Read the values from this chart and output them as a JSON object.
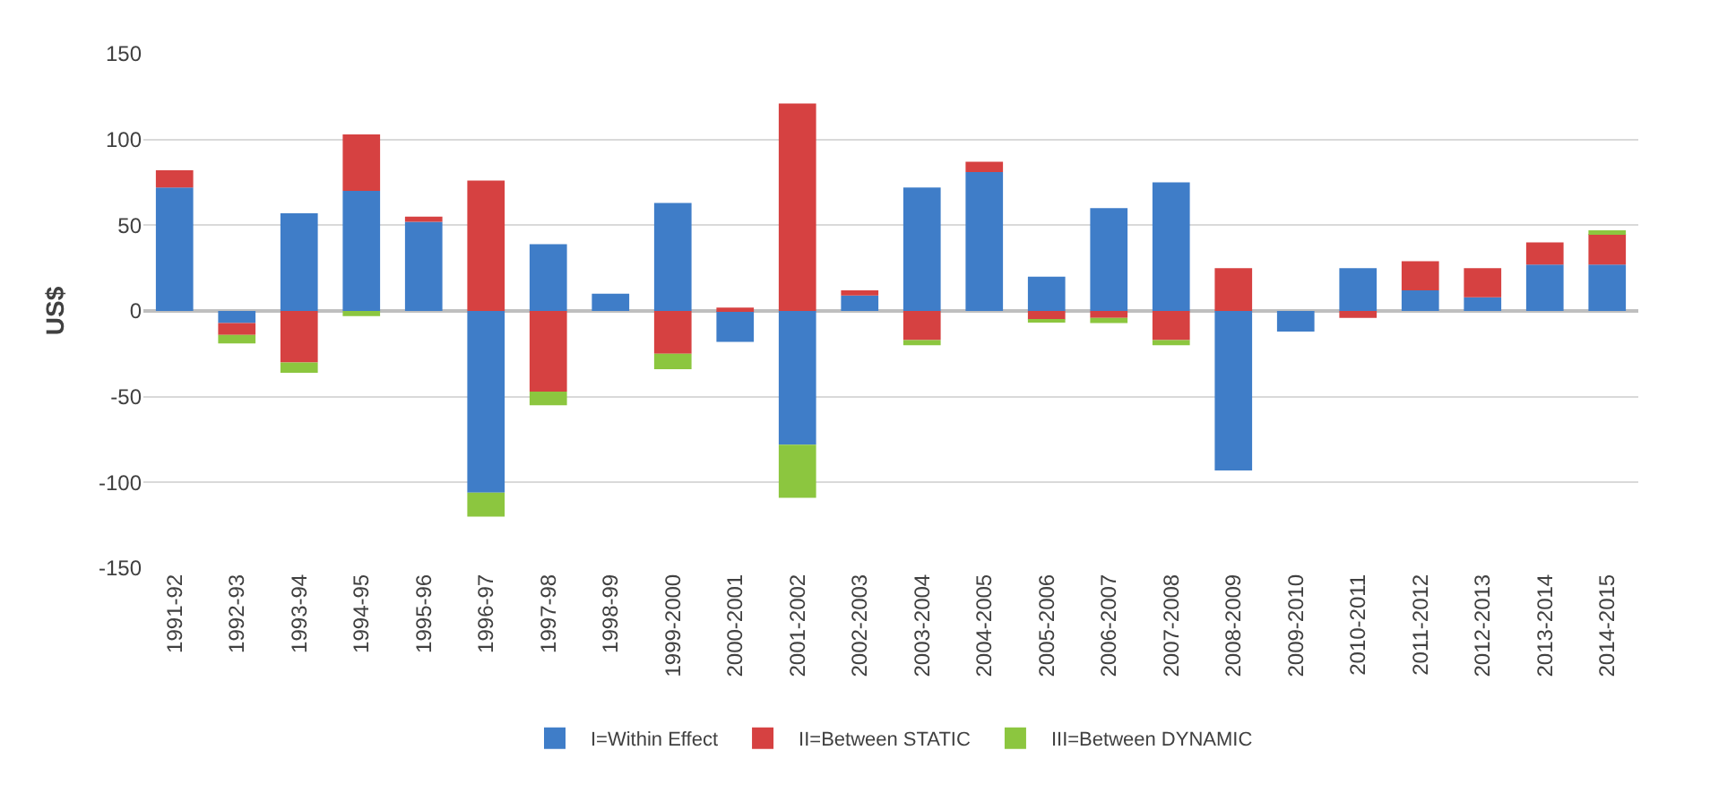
{
  "chart_data": {
    "type": "bar",
    "stacked": true,
    "ylabel": "US$",
    "categories": [
      "1991-92",
      "1992-93",
      "1993-94",
      "1994-95",
      "1995-96",
      "1996-97",
      "1997-98",
      "1998-99",
      "1999-2000",
      "2000-2001",
      "2001-2002",
      "2002-2003",
      "2003-2004",
      "2004-2005",
      "2005-2006",
      "2006-2007",
      "2007-2008",
      "2008-2009",
      "2009-2010",
      "2010-2011",
      "2011-2012",
      "2012-2013",
      "2013-2014",
      "2014-2015"
    ],
    "series": [
      {
        "name": "I=Within Effect",
        "color": "#3f7dc8",
        "values": [
          72,
          -7,
          57,
          70,
          52,
          -106,
          39,
          10,
          63,
          -18,
          -78,
          9,
          72,
          81,
          20,
          60,
          75,
          -93,
          -12,
          25,
          12,
          8,
          27,
          27
        ]
      },
      {
        "name": "II=Between STATIC",
        "color": "#d64141",
        "values": [
          10,
          -7,
          -30,
          33,
          3,
          76,
          -47,
          0,
          -25,
          2,
          121,
          3,
          -17,
          6,
          -5,
          -4,
          -17,
          25,
          0,
          -4,
          17,
          17,
          13,
          18
        ]
      },
      {
        "name": "III=Between DYNAMIC",
        "color": "#8cc63f",
        "values": [
          0,
          -5,
          -6,
          -3,
          0,
          -14,
          -8,
          0,
          -9,
          0,
          -31,
          0,
          -3,
          0,
          -1,
          -3,
          -3,
          0,
          0,
          0,
          0,
          0,
          0,
          2
        ]
      }
    ],
    "ylim": [
      -150,
      150
    ],
    "yticks": [
      -150,
      -100,
      -50,
      0,
      50,
      100,
      150
    ],
    "grid": "y",
    "legend": "bottom"
  }
}
